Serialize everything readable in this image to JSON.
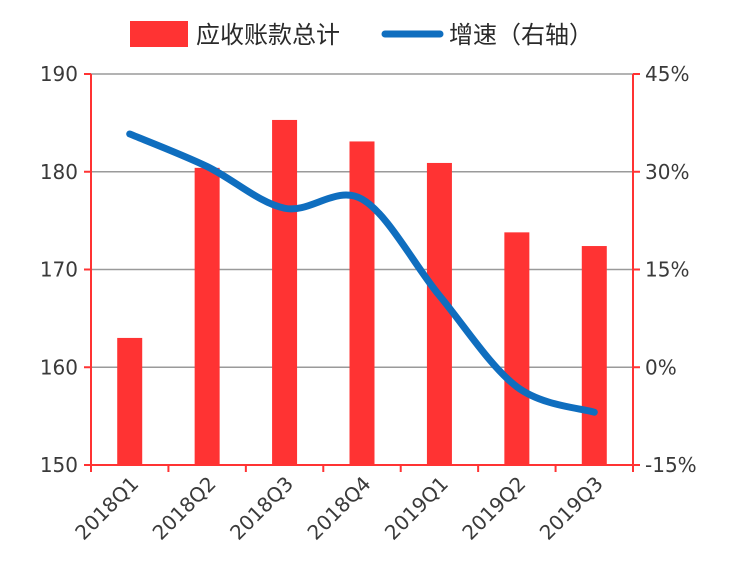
{
  "chart_data": {
    "type": "bar+line",
    "title": "",
    "categories": [
      "2018Q1",
      "2018Q2",
      "2018Q3",
      "2018Q4",
      "2019Q1",
      "2019Q2",
      "2019Q3"
    ],
    "series": [
      {
        "name": "应收账款总计",
        "type": "bar",
        "axis": "left",
        "color": "#FF3333",
        "values": [
          163.0,
          180.4,
          185.3,
          183.1,
          180.9,
          173.8,
          172.4
        ]
      },
      {
        "name": "增速（右轴）",
        "type": "line",
        "axis": "right",
        "color": "#0F6EBF",
        "values": [
          35.8,
          30.8,
          24.4,
          25.8,
          11.0,
          -3.0,
          -6.9
        ],
        "unit": "%"
      }
    ],
    "y_left": {
      "ylim": [
        150,
        190
      ],
      "ticks": [
        150,
        160,
        170,
        180,
        190
      ]
    },
    "y_right": {
      "ylim": [
        -15,
        45
      ],
      "ticks": [
        "-15%",
        "0%",
        "15%",
        "30%",
        "45%"
      ]
    },
    "axis_color": "#FF3333",
    "grid": true,
    "legend_position": "top"
  }
}
